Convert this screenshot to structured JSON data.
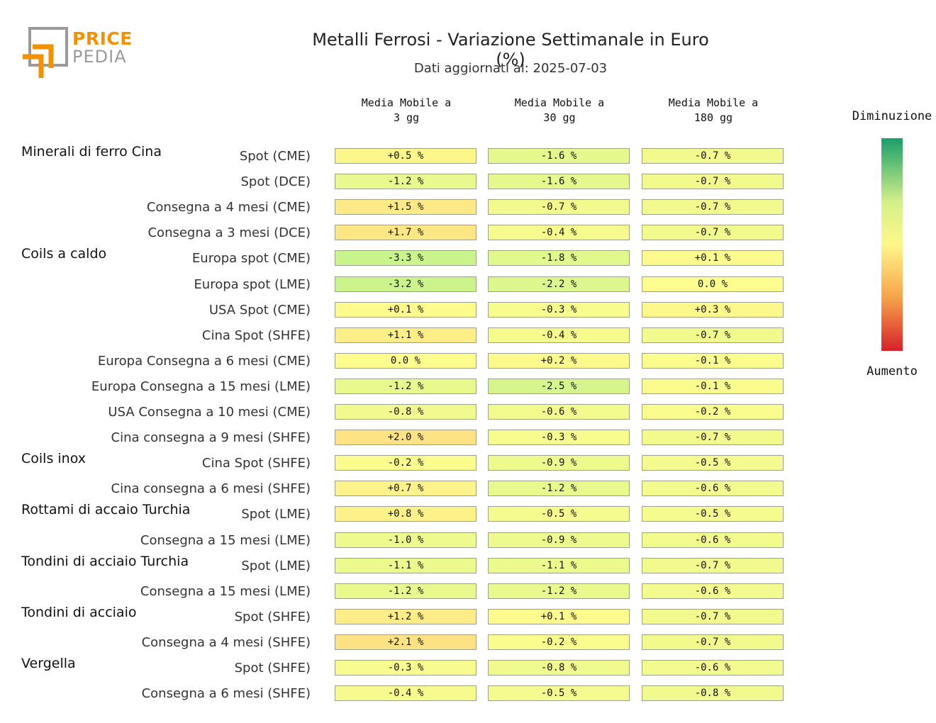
{
  "header": {
    "logo_text_1": "PRICE",
    "logo_text_2": "PEDIA",
    "title": "Metalli Ferrosi - Variazione Settimanale in Euro (%)",
    "subtitle": "Dati aggiornati al: 2025-07-03"
  },
  "legend": {
    "top_label": "Diminuzione",
    "bottom_label": "Aumento",
    "colors": [
      "#1a9e6a",
      "#d4f08a",
      "#fff78a",
      "#f6a34a",
      "#d8202a"
    ]
  },
  "chart_data": {
    "type": "table",
    "title": "Metalli Ferrosi - Variazione Settimanale in Euro (%)",
    "columns": [
      {
        "line1": "Media Mobile a",
        "line2": "3 gg"
      },
      {
        "line1": "Media Mobile a",
        "line2": "30 gg"
      },
      {
        "line1": "Media Mobile a",
        "line2": "180 gg"
      }
    ],
    "groups": [
      {
        "name": "Minerali di ferro Cina",
        "rows": [
          {
            "label": "Spot (CME)",
            "values": [
              "+0.5 %",
              "-1.6 %",
              "-0.7 %"
            ],
            "num": [
              0.5,
              -1.6,
              -0.7
            ]
          },
          {
            "label": "Spot (DCE)",
            "values": [
              "-1.2 %",
              "-1.6 %",
              "-0.7 %"
            ],
            "num": [
              -1.2,
              -1.6,
              -0.7
            ]
          },
          {
            "label": "Consegna a 4 mesi (CME)",
            "values": [
              "+1.5 %",
              "-0.7 %",
              "-0.7 %"
            ],
            "num": [
              1.5,
              -0.7,
              -0.7
            ]
          },
          {
            "label": "Consegna a 3 mesi (DCE)",
            "values": [
              "+1.7 %",
              "-0.4 %",
              "-0.7 %"
            ],
            "num": [
              1.7,
              -0.4,
              -0.7
            ]
          }
        ]
      },
      {
        "name": "Coils a caldo",
        "rows": [
          {
            "label": "Europa spot (CME)",
            "values": [
              "-3.3 %",
              "-1.8 %",
              "+0.1 %"
            ],
            "num": [
              -3.3,
              -1.8,
              0.1
            ]
          },
          {
            "label": "Europa spot (LME)",
            "values": [
              "-3.2 %",
              "-2.2 %",
              "0.0 %"
            ],
            "num": [
              -3.2,
              -2.2,
              0.0
            ]
          },
          {
            "label": "USA Spot (CME)",
            "values": [
              "+0.1 %",
              "-0.3 %",
              "+0.3 %"
            ],
            "num": [
              0.1,
              -0.3,
              0.3
            ]
          },
          {
            "label": "Cina Spot (SHFE)",
            "values": [
              "+1.1 %",
              "-0.4 %",
              "-0.7 %"
            ],
            "num": [
              1.1,
              -0.4,
              -0.7
            ]
          },
          {
            "label": "Europa Consegna a 6 mesi (CME)",
            "values": [
              "0.0 %",
              "+0.2 %",
              "-0.1 %"
            ],
            "num": [
              0.0,
              0.2,
              -0.1
            ]
          },
          {
            "label": "Europa Consegna a 15 mesi (LME)",
            "values": [
              "-1.2 %",
              "-2.5 %",
              "-0.1 %"
            ],
            "num": [
              -1.2,
              -2.5,
              -0.1
            ]
          },
          {
            "label": "USA Consegna a 10 mesi (CME)",
            "values": [
              "-0.8 %",
              "-0.6 %",
              "-0.2 %"
            ],
            "num": [
              -0.8,
              -0.6,
              -0.2
            ]
          },
          {
            "label": "Cina consegna a 9 mesi (SHFE)",
            "values": [
              "+2.0 %",
              "-0.3 %",
              "-0.7 %"
            ],
            "num": [
              2.0,
              -0.3,
              -0.7
            ]
          }
        ]
      },
      {
        "name": "Coils inox",
        "rows": [
          {
            "label": "Cina Spot (SHFE)",
            "values": [
              "-0.2 %",
              "-0.9 %",
              "-0.5 %"
            ],
            "num": [
              -0.2,
              -0.9,
              -0.5
            ]
          },
          {
            "label": "Cina consegna a 6 mesi (SHFE)",
            "values": [
              "+0.7 %",
              "-1.2 %",
              "-0.6 %"
            ],
            "num": [
              0.7,
              -1.2,
              -0.6
            ]
          }
        ]
      },
      {
        "name": "Rottami di accaio Turchia",
        "rows": [
          {
            "label": "Spot (LME)",
            "values": [
              "+0.8 %",
              "-0.5 %",
              "-0.5 %"
            ],
            "num": [
              0.8,
              -0.5,
              -0.5
            ]
          },
          {
            "label": "Consegna a 15 mesi (LME)",
            "values": [
              "-1.0 %",
              "-0.9 %",
              "-0.6 %"
            ],
            "num": [
              -1.0,
              -0.9,
              -0.6
            ]
          }
        ]
      },
      {
        "name": "Tondini di acciaio Turchia",
        "rows": [
          {
            "label": "Spot (LME)",
            "values": [
              "-1.1 %",
              "-1.1 %",
              "-0.7 %"
            ],
            "num": [
              -1.1,
              -1.1,
              -0.7
            ]
          },
          {
            "label": "Consegna a 15 mesi (LME)",
            "values": [
              "-1.2 %",
              "-1.2 %",
              "-0.6 %"
            ],
            "num": [
              -1.2,
              -1.2,
              -0.6
            ]
          }
        ]
      },
      {
        "name": "Tondini di acciaio",
        "rows": [
          {
            "label": "Spot (SHFE)",
            "values": [
              "+1.2 %",
              "+0.1 %",
              "-0.7 %"
            ],
            "num": [
              1.2,
              0.1,
              -0.7
            ]
          },
          {
            "label": "Consegna a 4 mesi (SHFE)",
            "values": [
              "+2.1 %",
              "-0.2 %",
              "-0.7 %"
            ],
            "num": [
              2.1,
              -0.2,
              -0.7
            ]
          }
        ]
      },
      {
        "name": "Vergella",
        "rows": [
          {
            "label": "Spot (SHFE)",
            "values": [
              "-0.3 %",
              "-0.8 %",
              "-0.6 %"
            ],
            "num": [
              -0.3,
              -0.8,
              -0.6
            ]
          },
          {
            "label": "Consegna a 6 mesi (SHFE)",
            "values": [
              "-0.4 %",
              "-0.5 %",
              "-0.8 %"
            ],
            "num": [
              -0.4,
              -0.5,
              -0.8
            ]
          }
        ]
      }
    ]
  }
}
